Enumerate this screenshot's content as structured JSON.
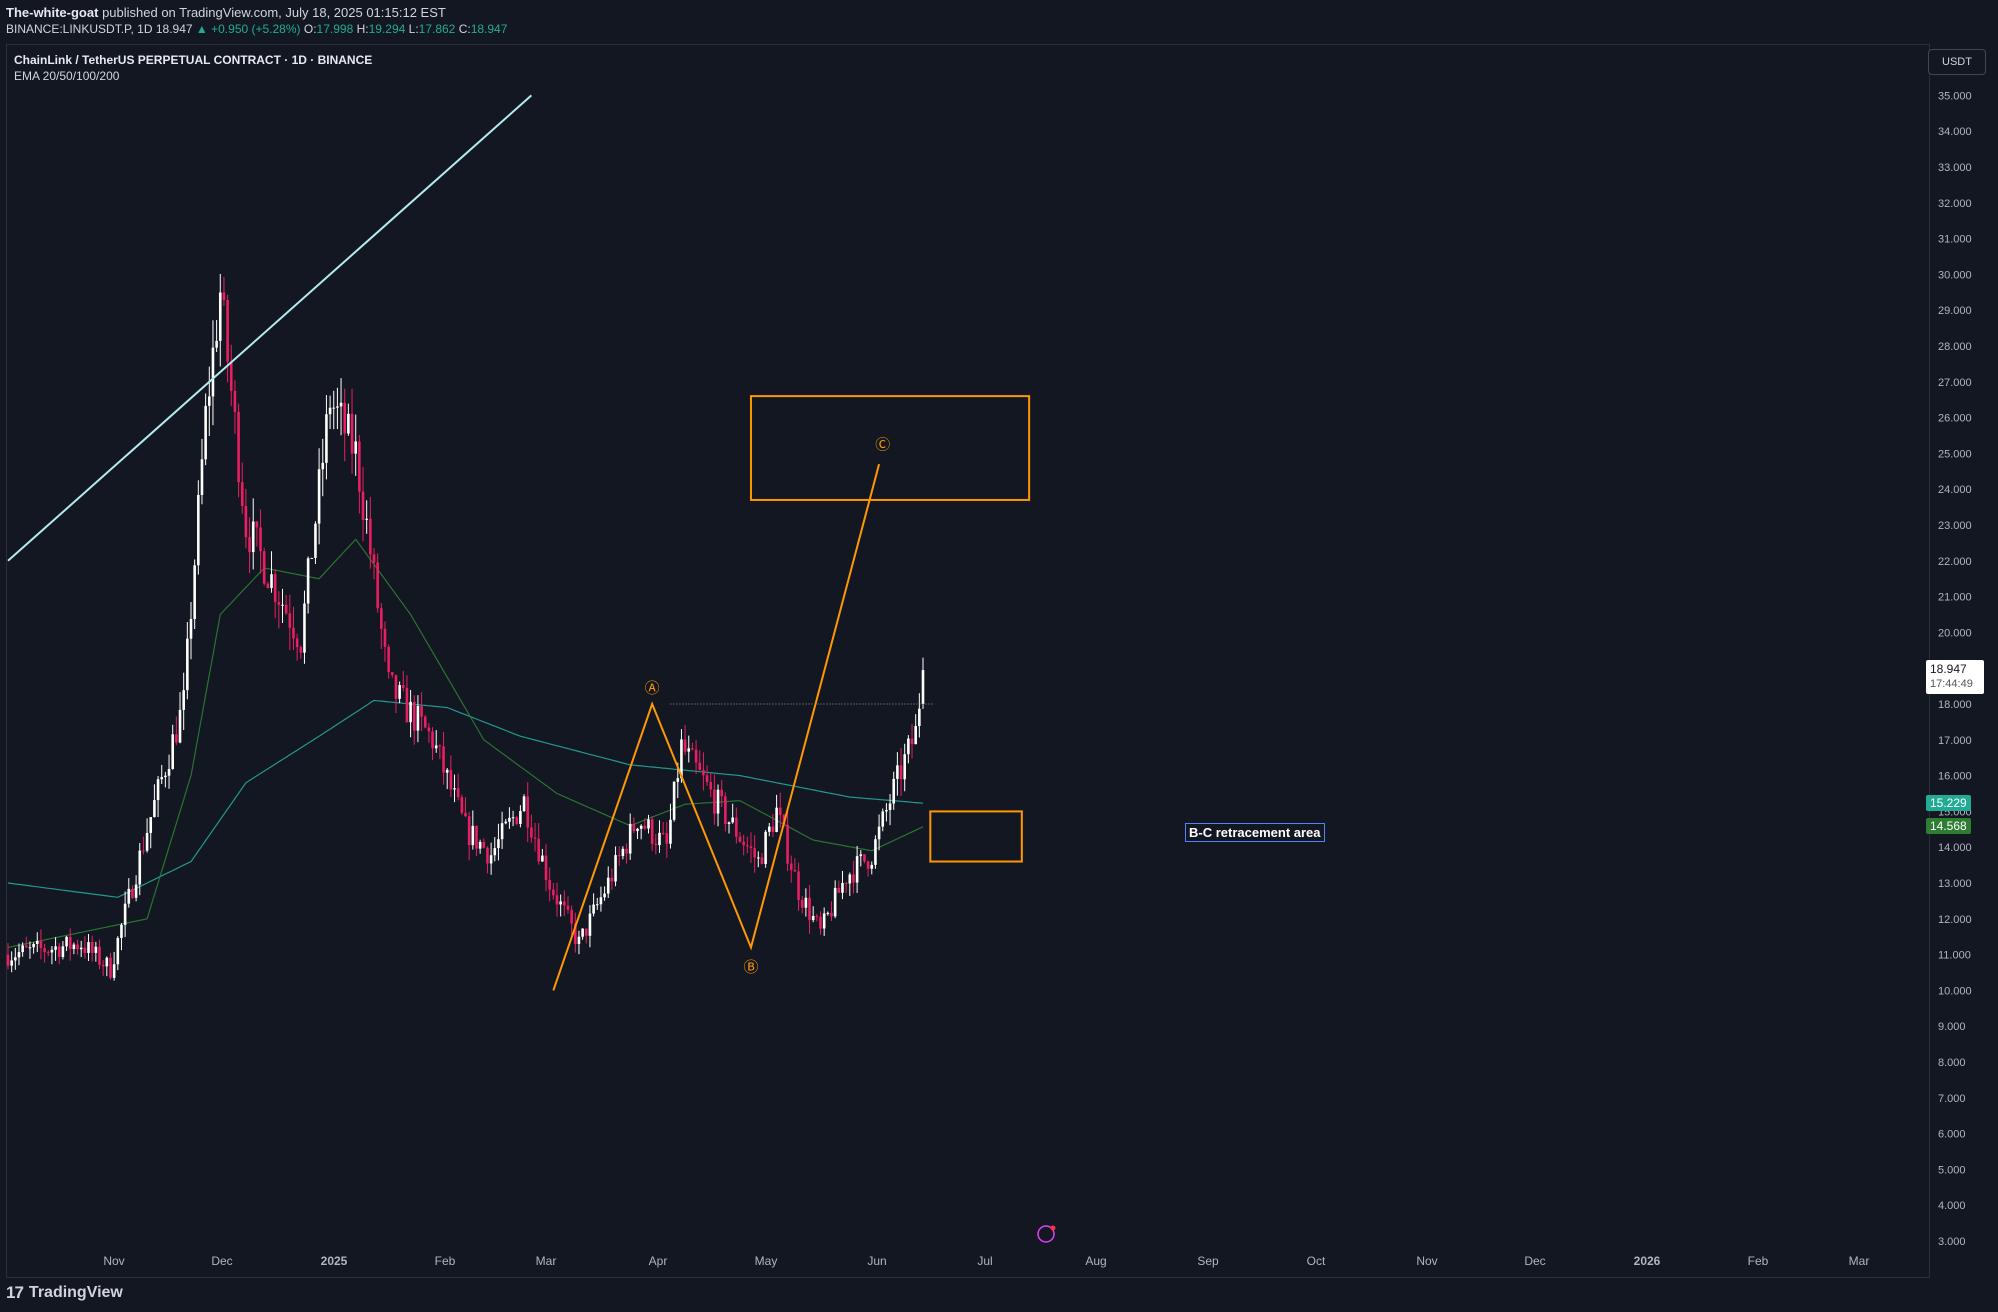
{
  "header": {
    "author": "The-white-goat",
    "published_text": "published on TradingView.com, July 18, 2025 01:15:12 EST",
    "symbol_line_prefix": "BINANCE:LINKUSDT.P, 1D",
    "price": "18.947",
    "change": "+0.950 (+5.28%)",
    "o_label": "O:",
    "o": "17.998",
    "h_label": "H:",
    "h": "19.294",
    "l_label": "L:",
    "l": "17.862",
    "c_label": "C:",
    "c": "18.947"
  },
  "legend": {
    "title": "ChainLink / TetherUS PERPETUAL CONTRACT · 1D · BINANCE",
    "indicator": "EMA 20/50/100/200"
  },
  "currency_button": "USDT",
  "last_price": {
    "value": "18.947",
    "countdown": "17:44:49"
  },
  "ema_tags": [
    {
      "value": "15.229",
      "color": "#22ab94"
    },
    {
      "value": "14.568",
      "color": "#2e7d32"
    }
  ],
  "annotation": {
    "text": "B-C retracement area"
  },
  "wave_labels": [
    "Ⓐ",
    "Ⓑ",
    "Ⓒ"
  ],
  "footer": {
    "brand": "TradingView",
    "logo_glyph": "17"
  },
  "colors": {
    "background": "#131722",
    "up_candle": "#ffffff",
    "down_candle": "#e91e63",
    "wave": "#ff9800",
    "trendline": "#b2ebf2",
    "ema_fast": "#2e7d32",
    "ema_slow": "#26a69a"
  },
  "chart_data": {
    "type": "candlestick",
    "symbol": "LINKUSDT.P",
    "timeframe": "1D",
    "y_axis_labels": [
      "35.000",
      "34.000",
      "33.000",
      "32.000",
      "31.000",
      "30.000",
      "29.000",
      "28.000",
      "27.000",
      "26.000",
      "25.000",
      "24.000",
      "23.000",
      "22.000",
      "21.000",
      "20.000",
      "19.000",
      "18.000",
      "17.000",
      "16.000",
      "15.000",
      "14.000",
      "13.000",
      "12.000",
      "11.000",
      "10.000",
      "9.000",
      "8.000",
      "7.000",
      "6.000",
      "5.000",
      "4.000",
      "3.000"
    ],
    "x_axis_labels": [
      "Nov",
      "Dec",
      "2025",
      "Feb",
      "Mar",
      "Apr",
      "May",
      "Jun",
      "Jul",
      "Aug",
      "Sep",
      "Oct",
      "Nov",
      "Dec",
      "2026",
      "Feb",
      "Mar"
    ],
    "price_waypoints": [
      {
        "t": 0,
        "p": 11.0
      },
      {
        "t": 20,
        "p": 11.3
      },
      {
        "t": 28,
        "p": 10.6
      },
      {
        "t": 38,
        "p": 14.5
      },
      {
        "t": 48,
        "p": 18.0
      },
      {
        "t": 54,
        "p": 26.0
      },
      {
        "t": 58,
        "p": 29.5
      },
      {
        "t": 65,
        "p": 23.0
      },
      {
        "t": 72,
        "p": 21.5
      },
      {
        "t": 80,
        "p": 19.8
      },
      {
        "t": 88,
        "p": 26.5
      },
      {
        "t": 95,
        "p": 25.0
      },
      {
        "t": 98,
        "p": 23.0
      },
      {
        "t": 104,
        "p": 18.5
      },
      {
        "t": 116,
        "p": 17.0
      },
      {
        "t": 125,
        "p": 14.5
      },
      {
        "t": 132,
        "p": 13.8
      },
      {
        "t": 141,
        "p": 15.3
      },
      {
        "t": 148,
        "p": 13.0
      },
      {
        "t": 156,
        "p": 11.3
      },
      {
        "t": 164,
        "p": 13.0
      },
      {
        "t": 172,
        "p": 14.8
      },
      {
        "t": 180,
        "p": 14.0
      },
      {
        "t": 184,
        "p": 16.8
      },
      {
        "t": 192,
        "p": 15.5
      },
      {
        "t": 200,
        "p": 14.3
      },
      {
        "t": 205,
        "p": 13.6
      },
      {
        "t": 210,
        "p": 15.0
      },
      {
        "t": 216,
        "p": 12.8
      },
      {
        "t": 222,
        "p": 11.6
      },
      {
        "t": 229,
        "p": 13.2
      },
      {
        "t": 236,
        "p": 13.8
      },
      {
        "t": 242,
        "p": 15.6
      },
      {
        "t": 248,
        "p": 17.2
      },
      {
        "t": 250,
        "p": 18.95
      }
    ],
    "ema_fast_waypoints": [
      {
        "t": 0,
        "p": 11.2
      },
      {
        "t": 38,
        "p": 12.0
      },
      {
        "t": 50,
        "p": 16.0
      },
      {
        "t": 58,
        "p": 20.5
      },
      {
        "t": 70,
        "p": 21.8
      },
      {
        "t": 85,
        "p": 21.5
      },
      {
        "t": 95,
        "p": 22.6
      },
      {
        "t": 110,
        "p": 20.5
      },
      {
        "t": 130,
        "p": 17.0
      },
      {
        "t": 150,
        "p": 15.5
      },
      {
        "t": 170,
        "p": 14.6
      },
      {
        "t": 185,
        "p": 15.2
      },
      {
        "t": 200,
        "p": 15.3
      },
      {
        "t": 220,
        "p": 14.2
      },
      {
        "t": 236,
        "p": 13.9
      },
      {
        "t": 250,
        "p": 14.57
      }
    ],
    "ema_slow_waypoints": [
      {
        "t": 0,
        "p": 13.0
      },
      {
        "t": 30,
        "p": 12.6
      },
      {
        "t": 50,
        "p": 13.6
      },
      {
        "t": 65,
        "p": 15.8
      },
      {
        "t": 85,
        "p": 17.1
      },
      {
        "t": 100,
        "p": 18.1
      },
      {
        "t": 120,
        "p": 17.9
      },
      {
        "t": 140,
        "p": 17.1
      },
      {
        "t": 170,
        "p": 16.3
      },
      {
        "t": 200,
        "p": 16.0
      },
      {
        "t": 230,
        "p": 15.4
      },
      {
        "t": 250,
        "p": 15.23
      }
    ],
    "trendline": {
      "start": {
        "t": 0,
        "p": 22.0
      },
      "end": {
        "t": 143,
        "p": 35.0
      }
    },
    "wave": {
      "start": {
        "t": 149,
        "p": 10.0
      },
      "A": {
        "t": 176,
        "p": 18.0
      },
      "B": {
        "t": 203,
        "p": 11.2
      },
      "C_target": {
        "t": 238,
        "p": 24.7
      }
    },
    "resistance_line": {
      "p": 18.0,
      "t_from": 181,
      "t_to": 253
    },
    "target_zone": {
      "p_high": 26.6,
      "p_low": 23.7,
      "t_from": 203,
      "t_to": 279
    },
    "retracement_zone": {
      "p_high": 15.0,
      "p_low": 13.6,
      "t_from": 252,
      "t_to": 277
    }
  }
}
